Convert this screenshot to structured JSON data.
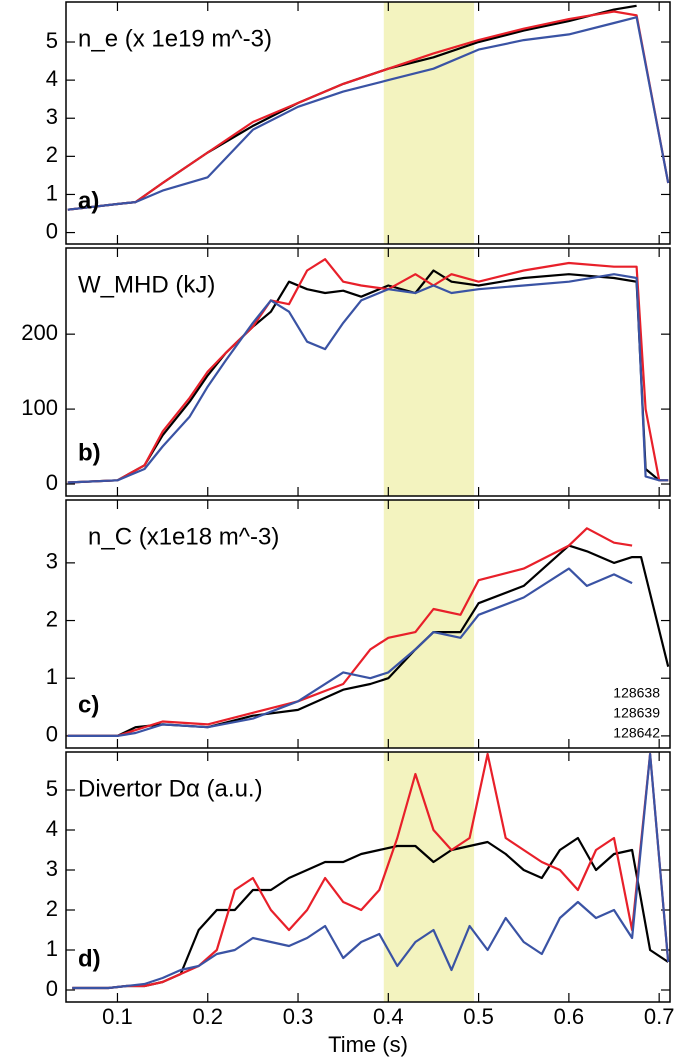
{
  "chart_data": [
    {
      "type": "line",
      "title": "n_e (x 1e19 m^-3)",
      "label": "a)",
      "xlim": [
        0.043,
        0.712
      ],
      "ylim": [
        -0.3,
        6.05
      ],
      "yticks": [
        0,
        1,
        2,
        3,
        4,
        5
      ],
      "highlight_x": [
        0.395,
        0.495
      ],
      "highlight_color": "#f3f3bf",
      "x": [
        0.045,
        0.1,
        0.12,
        0.15,
        0.2,
        0.25,
        0.3,
        0.35,
        0.4,
        0.45,
        0.5,
        0.55,
        0.6,
        0.65,
        0.675,
        0.71
      ],
      "series": [
        {
          "color": "#000000",
          "values": [
            0.6,
            0.75,
            0.8,
            1.3,
            2.1,
            2.8,
            3.4,
            3.9,
            4.3,
            4.6,
            5.0,
            5.3,
            5.55,
            5.85,
            5.95,
            null
          ]
        },
        {
          "color": "#e8202a",
          "values": [
            0.6,
            0.75,
            0.8,
            1.3,
            2.1,
            2.9,
            3.4,
            3.9,
            4.3,
            4.7,
            5.05,
            5.35,
            5.6,
            5.8,
            5.7,
            1.3
          ]
        },
        {
          "color": "#3a53a4",
          "values": [
            0.6,
            0.75,
            0.8,
            1.1,
            1.45,
            2.7,
            3.3,
            3.7,
            4.0,
            4.3,
            4.8,
            5.05,
            5.2,
            5.5,
            5.65,
            1.3
          ]
        }
      ]
    },
    {
      "type": "line",
      "title": "W_MHD (kJ)",
      "label": "b)",
      "xlim": [
        0.043,
        0.712
      ],
      "ylim": [
        -16,
        315
      ],
      "yticks": [
        0,
        100,
        200
      ],
      "highlight_x": [
        0.395,
        0.495
      ],
      "highlight_color": "#f3f3bf",
      "x": [
        0.045,
        0.1,
        0.13,
        0.15,
        0.18,
        0.2,
        0.22,
        0.25,
        0.27,
        0.29,
        0.31,
        0.33,
        0.35,
        0.37,
        0.4,
        0.43,
        0.45,
        0.47,
        0.5,
        0.55,
        0.6,
        0.65,
        0.675,
        0.685,
        0.7,
        0.71
      ],
      "series": [
        {
          "color": "#000000",
          "values": [
            2,
            5,
            25,
            65,
            110,
            145,
            175,
            210,
            230,
            270,
            260,
            255,
            258,
            250,
            265,
            255,
            285,
            270,
            265,
            275,
            280,
            275,
            270,
            20,
            5,
            5
          ]
        },
        {
          "color": "#e8202a",
          "values": [
            2,
            5,
            25,
            70,
            115,
            150,
            175,
            210,
            245,
            240,
            285,
            300,
            270,
            265,
            260,
            280,
            265,
            280,
            270,
            285,
            295,
            290,
            290,
            100,
            5,
            5
          ]
        },
        {
          "color": "#3a53a4",
          "values": [
            2,
            5,
            20,
            50,
            90,
            130,
            165,
            215,
            245,
            230,
            190,
            180,
            215,
            245,
            260,
            255,
            265,
            255,
            260,
            265,
            270,
            280,
            275,
            10,
            5,
            5
          ]
        }
      ]
    },
    {
      "type": "line",
      "title": "n_C (x1e18 m^-3)",
      "label": "c)",
      "legend": "lower right",
      "xlim": [
        0.043,
        0.712
      ],
      "ylim": [
        -0.21,
        4.09
      ],
      "yticks": [
        0,
        1,
        2,
        3
      ],
      "highlight_x": [
        0.395,
        0.495
      ],
      "highlight_color": "#f3f3bf",
      "x": [
        0.045,
        0.1,
        0.12,
        0.15,
        0.2,
        0.25,
        0.3,
        0.35,
        0.38,
        0.4,
        0.43,
        0.45,
        0.48,
        0.5,
        0.55,
        0.6,
        0.62,
        0.65,
        0.67,
        0.68,
        0.71
      ],
      "series": [
        {
          "name": "128638",
          "color": "#000000",
          "values": [
            0,
            0,
            0.15,
            0.2,
            0.15,
            0.35,
            0.45,
            0.8,
            0.9,
            1.0,
            1.5,
            1.8,
            1.8,
            2.3,
            2.6,
            3.3,
            3.2,
            3.0,
            3.1,
            3.1,
            1.2
          ]
        },
        {
          "name": "128639",
          "color": "#e8202a",
          "values": [
            0,
            0,
            0.1,
            0.25,
            0.2,
            0.4,
            0.6,
            0.9,
            1.5,
            1.7,
            1.8,
            2.2,
            2.1,
            2.7,
            2.9,
            3.3,
            3.6,
            3.35,
            3.3,
            null,
            null
          ]
        },
        {
          "name": "128642",
          "color": "#3a53a4",
          "values": [
            0,
            0,
            0.05,
            0.2,
            0.15,
            0.3,
            0.6,
            1.1,
            1.0,
            1.1,
            1.5,
            1.8,
            1.7,
            2.1,
            2.4,
            2.9,
            2.6,
            2.8,
            2.65,
            null,
            null
          ]
        }
      ]
    },
    {
      "type": "line",
      "title": "Divertor Dα (a.u.)",
      "label": "d)",
      "xlabel": "Time (s)",
      "xlim": [
        0.043,
        0.712
      ],
      "ylim": [
        -0.3,
        5.95
      ],
      "yticks": [
        0,
        1,
        2,
        3,
        4,
        5
      ],
      "xticks": [
        0.1,
        0.2,
        0.3,
        0.4,
        0.5,
        0.6,
        0.7
      ],
      "highlight_x": [
        0.395,
        0.495
      ],
      "highlight_color": "#f3f3bf",
      "x": [
        0.05,
        0.07,
        0.09,
        0.11,
        0.13,
        0.15,
        0.17,
        0.19,
        0.21,
        0.23,
        0.25,
        0.27,
        0.29,
        0.31,
        0.33,
        0.35,
        0.37,
        0.39,
        0.41,
        0.43,
        0.45,
        0.47,
        0.49,
        0.51,
        0.53,
        0.55,
        0.57,
        0.59,
        0.61,
        0.63,
        0.65,
        0.67,
        0.69,
        0.71
      ],
      "series": [
        {
          "color": "#000000",
          "values": [
            0.05,
            0.05,
            0.05,
            0.1,
            0.1,
            0.2,
            0.4,
            1.5,
            2.0,
            2.0,
            2.5,
            2.5,
            2.8,
            3.0,
            3.2,
            3.2,
            3.4,
            3.5,
            3.6,
            3.6,
            3.2,
            3.5,
            3.6,
            3.7,
            3.4,
            3.0,
            2.8,
            3.5,
            3.8,
            3.0,
            3.4,
            3.5,
            1.0,
            0.7
          ]
        },
        {
          "color": "#e8202a",
          "values": [
            0.05,
            0.05,
            0.05,
            0.1,
            0.1,
            0.2,
            0.4,
            0.6,
            1.0,
            2.5,
            2.8,
            2.0,
            1.5,
            2.0,
            2.8,
            2.2,
            2.0,
            2.5,
            3.8,
            5.4,
            4.0,
            3.5,
            3.8,
            5.9,
            3.8,
            3.5,
            3.2,
            3.0,
            2.5,
            3.5,
            3.8,
            1.5,
            5.9,
            0.7
          ]
        },
        {
          "color": "#3a53a4",
          "values": [
            0.05,
            0.05,
            0.05,
            0.1,
            0.15,
            0.3,
            0.5,
            0.6,
            0.9,
            1.0,
            1.3,
            1.2,
            1.1,
            1.3,
            1.6,
            0.8,
            1.2,
            1.4,
            0.6,
            1.2,
            1.5,
            0.5,
            1.6,
            1.0,
            1.8,
            1.2,
            0.9,
            1.8,
            2.2,
            1.8,
            2.0,
            1.3,
            5.9,
            0.7
          ]
        }
      ]
    }
  ]
}
